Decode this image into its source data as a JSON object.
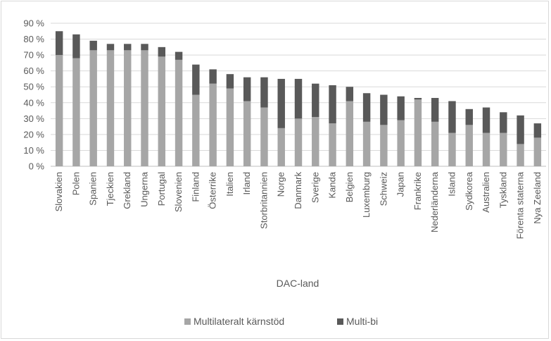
{
  "chart_data": {
    "type": "bar",
    "stacked": true,
    "xlabel": "DAC-land",
    "ylabel": "",
    "ylim": [
      0,
      90
    ],
    "yticks": [
      "0 %",
      "10 %",
      "20 %",
      "30 %",
      "40 %",
      "50 %",
      "60 %",
      "70 %",
      "80 %",
      "90 %"
    ],
    "grid": true,
    "legend_position": "bottom",
    "categories": [
      "Slovakien",
      "Polen",
      "Spanien",
      "Tjeckien",
      "Grekland",
      "Ungerna",
      "Portugal",
      "Slovenien",
      "Finland",
      "Österrike",
      "Italien",
      "Irland",
      "Storbritannien",
      "Norge",
      "Danmark",
      "Sverige",
      "Kanda",
      "Belgien",
      "Luxemburg",
      "Schweiz",
      "Japan",
      "Frankrike",
      "Nederländerna",
      "Island",
      "Sydkorea",
      "Australien",
      "Tyskland",
      "Förenta staterna",
      "Nya Zeeland"
    ],
    "series": [
      {
        "name": "Multilateralt kärnstöd",
        "color": "#a6a6a6",
        "values": [
          70,
          68,
          73,
          73,
          73,
          73,
          69,
          67,
          45,
          52,
          49,
          41,
          37,
          24,
          30,
          31,
          27,
          41,
          28,
          26,
          29,
          42,
          28,
          21,
          26,
          21,
          21,
          14,
          18
        ]
      },
      {
        "name": "Multi-bi",
        "color": "#595959",
        "values": [
          15,
          15,
          6,
          4,
          4,
          4,
          6,
          5,
          19,
          9,
          9,
          15,
          19,
          31,
          25,
          21,
          24,
          9,
          18,
          19,
          15,
          1,
          15,
          20,
          10,
          16,
          13,
          18,
          9
        ]
      }
    ]
  }
}
